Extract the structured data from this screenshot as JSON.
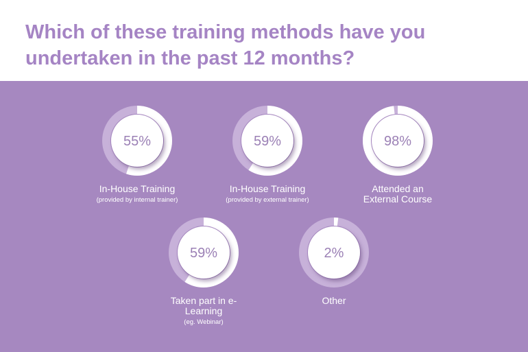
{
  "chart_data": {
    "type": "progress-donut",
    "title": "Which of these training methods have you undertaken in the past 12 months?",
    "categories": [
      "In-House Training",
      "In-House Training",
      "Attended an External Course",
      "Taken part in e-Learning",
      "Other"
    ],
    "sublabels": [
      "(provided by internal trainer)",
      "(provided by external  trainer)",
      null,
      "(eg. Webinar)",
      null
    ],
    "values": [
      55,
      59,
      98,
      59,
      2
    ],
    "value_labels": [
      "55%",
      "59%",
      "98%",
      "59%",
      "2%"
    ],
    "color": "#ffffff",
    "track_color": "#c7b1d9"
  }
}
